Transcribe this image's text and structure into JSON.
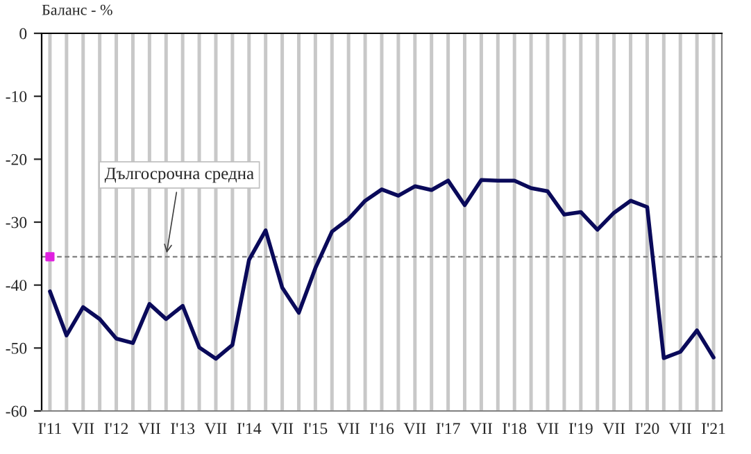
{
  "chart_data": {
    "type": "line",
    "ylabel": "Баланс - %",
    "categories": [
      "I'11",
      null,
      "VII",
      null,
      "I'12",
      null,
      "VII",
      null,
      "I'13",
      null,
      "VII",
      null,
      "I'14",
      null,
      "VII",
      null,
      "I'15",
      null,
      "VII",
      null,
      "I'16",
      null,
      "VII",
      null,
      "I'17",
      null,
      "VII",
      null,
      "I'18",
      null,
      "VII",
      null,
      "I'19",
      null,
      "VII",
      null,
      "I'20",
      null,
      "VII",
      null,
      "I'21"
    ],
    "series": [
      {
        "color": "#0a0a5a",
        "values": [
          -41,
          -48,
          -43.5,
          -45.4,
          -48.5,
          -49.2,
          -43,
          -45.4,
          -43.3,
          -49.9,
          -51.7,
          -49.5,
          -36,
          -31.3,
          -40.4,
          -44.4,
          -37.3,
          -31.5,
          -29.5,
          -26.6,
          -24.8,
          -25.8,
          -24.3,
          -24.9,
          -23.4,
          -27.3,
          -23.3,
          -23.4,
          -23.4,
          -24.6,
          -25.1,
          -28.8,
          -28.4,
          -31.2,
          -28.5,
          -26.6,
          -27.6,
          -51.6,
          -50.6,
          -47.2,
          -51.5
        ]
      },
      {
        "type": "scatter",
        "color": "#e020e0",
        "marker": "square",
        "values": [
          -35.5,
          null,
          null,
          null,
          null,
          null,
          null,
          null,
          null,
          null,
          null,
          null,
          null,
          null,
          null,
          null,
          null,
          null,
          null,
          null,
          null,
          null,
          null,
          null,
          null,
          null,
          null,
          null,
          null,
          null,
          null,
          null,
          null,
          null,
          null,
          null,
          null,
          null,
          null,
          null,
          null
        ]
      }
    ],
    "ylim": [
      -60,
      0
    ],
    "yticks": [
      -60,
      -50,
      -40,
      -30,
      -20,
      -10,
      0
    ],
    "grid": "x",
    "legend": false,
    "ref_lines": [
      {
        "axis": "y",
        "value": -35.5,
        "label": "Дългосрочна средна",
        "color": "#808080",
        "line_style": "dashed"
      }
    ]
  }
}
